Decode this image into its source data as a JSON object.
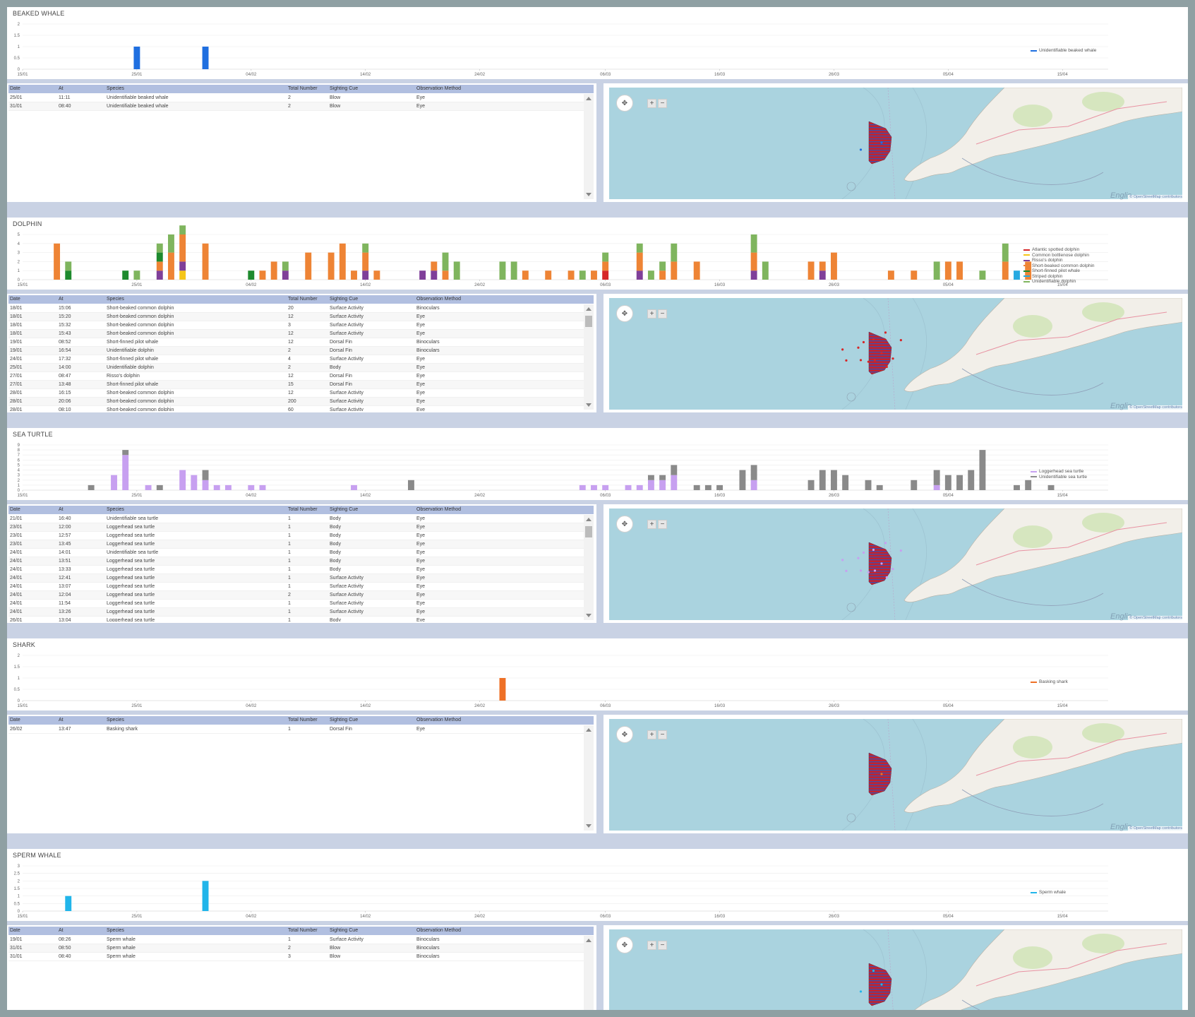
{
  "colors": {
    "beaked": "#1f6fe0",
    "atlantic_spotted": "#d62728",
    "bottlenose": "#f5c518",
    "rissos": "#7f3f99",
    "common": "#ee8435",
    "pilot": "#1e8a2e",
    "striped": "#27a9e1",
    "unid_dolphin": "#7fb55e",
    "loggerhead": "#c7a0f0",
    "unid_turtle": "#8a8a8a",
    "basking": "#ee7026",
    "sperm": "#21b5ea"
  },
  "x_ticks": [
    "15/01",
    "25/01",
    "04/02",
    "14/02",
    "24/02",
    "06/03",
    "16/03",
    "26/03",
    "05/04",
    "15/04"
  ],
  "table_headers": [
    "Date",
    "At",
    "Species",
    "Total Number",
    "Sighting Cue",
    "Observation Method"
  ],
  "map": {
    "attribution": "© OpenStreetMap contributors",
    "watermark": "Englis",
    "pan_icon": "pan-arrows-icon",
    "zoom_in": "+",
    "zoom_out": "−"
  },
  "sections": [
    {
      "title": "BEAKED WHALE",
      "chart_data": {
        "type": "bar",
        "x_start": "15/01",
        "x_end": "19/04",
        "ylim": [
          0,
          2
        ],
        "yticks": [
          "0",
          "0.5",
          "1",
          "1.5",
          "2"
        ],
        "series": [
          {
            "name": "Unidentifiable beaked whale",
            "color_key": "beaked",
            "points": [
              [
                "25/01",
                1
              ],
              [
                "31/01",
                1
              ]
            ]
          }
        ]
      },
      "rows": [
        [
          "25/01",
          "11:11",
          "Unidentifiable beaked whale",
          "2",
          "Blow",
          "Eye"
        ],
        [
          "31/01",
          "08:40",
          "Unidentifiable beaked whale",
          "2",
          "Blow",
          "Eye"
        ]
      ]
    },
    {
      "title": "DOLPHIN",
      "chart_data": {
        "type": "bar",
        "stacked": true,
        "x_start": "15/01",
        "x_end": "19/04",
        "ylim": [
          0,
          5
        ],
        "yticks": [
          "0",
          "1",
          "2",
          "3",
          "4",
          "5"
        ],
        "series": [
          {
            "name": "Atlantic spotted dolphin",
            "color_key": "atlantic_spotted",
            "points": [
              [
                "06/03",
                1
              ]
            ]
          },
          {
            "name": "Common bottlenose dolphin",
            "color_key": "bottlenose",
            "points": [
              [
                "29/01",
                1
              ]
            ]
          },
          {
            "name": "Risso's dolphin",
            "color_key": "rissos",
            "points": [
              [
                "27/01",
                1
              ],
              [
                "29/01",
                1
              ],
              [
                "07/02",
                1
              ],
              [
                "14/02",
                1
              ],
              [
                "19/02",
                1
              ],
              [
                "20/02",
                1
              ],
              [
                "09/03",
                1
              ],
              [
                "19/03",
                1
              ],
              [
                "25/03",
                1
              ]
            ]
          },
          {
            "name": "Short-beaked common dolphin",
            "color_key": "common",
            "points": [
              [
                "18/01",
                4
              ],
              [
                "27/01",
                1
              ],
              [
                "28/01",
                3
              ],
              [
                "29/01",
                3
              ],
              [
                "31/01",
                4
              ],
              [
                "05/02",
                1
              ],
              [
                "06/02",
                2
              ],
              [
                "09/02",
                3
              ],
              [
                "11/02",
                3
              ],
              [
                "12/02",
                4
              ],
              [
                "13/02",
                1
              ],
              [
                "14/02",
                2
              ],
              [
                "15/02",
                1
              ],
              [
                "20/02",
                1
              ],
              [
                "21/02",
                1
              ],
              [
                "28/02",
                1
              ],
              [
                "01/03",
                1
              ],
              [
                "03/03",
                1
              ],
              [
                "05/03",
                1
              ],
              [
                "06/03",
                1
              ],
              [
                "09/03",
                2
              ],
              [
                "11/03",
                1
              ],
              [
                "12/03",
                2
              ],
              [
                "14/03",
                2
              ],
              [
                "19/03",
                2
              ],
              [
                "24/03",
                2
              ],
              [
                "25/03",
                1
              ],
              [
                "26/03",
                3
              ],
              [
                "31/03",
                1
              ],
              [
                "02/04",
                1
              ],
              [
                "05/04",
                2
              ],
              [
                "06/04",
                2
              ],
              [
                "10/04",
                2
              ],
              [
                "12/04",
                2
              ]
            ]
          },
          {
            "name": "Short-finned pilot whale",
            "color_key": "pilot",
            "points": [
              [
                "19/01",
                1
              ],
              [
                "24/01",
                1
              ],
              [
                "27/01",
                1
              ],
              [
                "04/02",
                1
              ]
            ]
          },
          {
            "name": "Striped dolphin",
            "color_key": "striped",
            "points": [
              [
                "11/04",
                1
              ]
            ]
          },
          {
            "name": "Unidentifiable dolphin",
            "color_key": "unid_dolphin",
            "points": [
              [
                "19/01",
                1
              ],
              [
                "25/01",
                1
              ],
              [
                "27/01",
                1
              ],
              [
                "28/01",
                2
              ],
              [
                "29/01",
                1
              ],
              [
                "07/02",
                1
              ],
              [
                "14/02",
                1
              ],
              [
                "21/02",
                2
              ],
              [
                "22/02",
                2
              ],
              [
                "26/02",
                2
              ],
              [
                "27/02",
                2
              ],
              [
                "04/03",
                1
              ],
              [
                "06/03",
                1
              ],
              [
                "09/03",
                1
              ],
              [
                "10/03",
                1
              ],
              [
                "11/03",
                1
              ],
              [
                "12/03",
                2
              ],
              [
                "19/03",
                2
              ],
              [
                "20/03",
                2
              ],
              [
                "04/04",
                2
              ],
              [
                "08/04",
                1
              ],
              [
                "10/04",
                2
              ]
            ]
          }
        ]
      },
      "rows": [
        [
          "18/01",
          "15:06",
          "Short-beaked common dolphin",
          "20",
          "Surface Activity",
          "Binoculars"
        ],
        [
          "18/01",
          "15:20",
          "Short-beaked common dolphin",
          "12",
          "Surface Activity",
          "Eye"
        ],
        [
          "18/01",
          "15:32",
          "Short-beaked common dolphin",
          "3",
          "Surface Activity",
          "Eye"
        ],
        [
          "18/01",
          "15:43",
          "Short-beaked common dolphin",
          "12",
          "Surface Activity",
          "Eye"
        ],
        [
          "19/01",
          "08:52",
          "Short-finned pilot whale",
          "12",
          "Dorsal Fin",
          "Binoculars"
        ],
        [
          "19/01",
          "16:54",
          "Unidentifiable dolphin",
          "2",
          "Dorsal Fin",
          "Binoculars"
        ],
        [
          "24/01",
          "17:32",
          "Short-finned pilot whale",
          "4",
          "Surface Activity",
          "Eye"
        ],
        [
          "25/01",
          "14:00",
          "Unidentifiable dolphin",
          "2",
          "Body",
          "Eye"
        ],
        [
          "27/01",
          "08:47",
          "Risso's dolphin",
          "12",
          "Dorsal Fin",
          "Eye"
        ],
        [
          "27/01",
          "13:48",
          "Short-finned pilot whale",
          "15",
          "Dorsal Fin",
          "Eye"
        ],
        [
          "28/01",
          "16:15",
          "Short-beaked common dolphin",
          "12",
          "Surface Activity",
          "Eye"
        ],
        [
          "28/01",
          "20:06",
          "Short-beaked common dolphin",
          "200",
          "Surface Activity",
          "Eye"
        ],
        [
          "28/01",
          "08:10",
          "Short-beaked common dolphin",
          "60",
          "Surface Activity",
          "Eye"
        ]
      ]
    },
    {
      "title": "SEA TURTLE",
      "chart_data": {
        "type": "bar",
        "stacked": true,
        "x_start": "15/01",
        "x_end": "19/04",
        "ylim": [
          0,
          9
        ],
        "yticks": [
          "0",
          "1",
          "2",
          "3",
          "4",
          "5",
          "6",
          "7",
          "8",
          "9"
        ],
        "series": [
          {
            "name": "Loggerhead sea turtle",
            "color_key": "loggerhead",
            "points": [
              [
                "23/01",
                3
              ],
              [
                "24/01",
                7
              ],
              [
                "26/01",
                1
              ],
              [
                "29/01",
                4
              ],
              [
                "30/01",
                3
              ],
              [
                "31/01",
                2
              ],
              [
                "01/02",
                1
              ],
              [
                "02/02",
                1
              ],
              [
                "04/02",
                1
              ],
              [
                "05/02",
                1
              ],
              [
                "13/02",
                1
              ],
              [
                "04/03",
                1
              ],
              [
                "05/03",
                1
              ],
              [
                "06/03",
                1
              ],
              [
                "08/03",
                1
              ],
              [
                "09/03",
                1
              ],
              [
                "10/03",
                2
              ],
              [
                "11/03",
                2
              ],
              [
                "12/03",
                3
              ],
              [
                "19/03",
                2
              ],
              [
                "04/04",
                1
              ]
            ]
          },
          {
            "name": "Unidentifiable sea turtle",
            "color_key": "unid_turtle",
            "points": [
              [
                "21/01",
                1
              ],
              [
                "24/01",
                1
              ],
              [
                "27/01",
                1
              ],
              [
                "31/01",
                2
              ],
              [
                "18/02",
                2
              ],
              [
                "10/03",
                1
              ],
              [
                "11/03",
                1
              ],
              [
                "12/03",
                2
              ],
              [
                "14/03",
                1
              ],
              [
                "15/03",
                1
              ],
              [
                "16/03",
                1
              ],
              [
                "18/03",
                4
              ],
              [
                "19/03",
                3
              ],
              [
                "24/03",
                2
              ],
              [
                "25/03",
                4
              ],
              [
                "26/03",
                4
              ],
              [
                "27/03",
                3
              ],
              [
                "29/03",
                2
              ],
              [
                "30/03",
                1
              ],
              [
                "02/04",
                2
              ],
              [
                "04/04",
                3
              ],
              [
                "05/04",
                3
              ],
              [
                "06/04",
                3
              ],
              [
                "07/04",
                4
              ],
              [
                "08/04",
                8
              ],
              [
                "11/04",
                1
              ],
              [
                "12/04",
                2
              ],
              [
                "14/04",
                1
              ]
            ]
          }
        ]
      },
      "rows": [
        [
          "21/01",
          "16:40",
          "Unidentifiable sea turtle",
          "1",
          "Body",
          "Eye"
        ],
        [
          "23/01",
          "12:00",
          "Loggerhead sea turtle",
          "1",
          "Body",
          "Eye"
        ],
        [
          "23/01",
          "12:57",
          "Loggerhead sea turtle",
          "1",
          "Body",
          "Eye"
        ],
        [
          "23/01",
          "13:45",
          "Loggerhead sea turtle",
          "1",
          "Body",
          "Eye"
        ],
        [
          "24/01",
          "14:01",
          "Unidentifiable sea turtle",
          "1",
          "Body",
          "Eye"
        ],
        [
          "24/01",
          "13:51",
          "Loggerhead sea turtle",
          "1",
          "Body",
          "Eye"
        ],
        [
          "24/01",
          "13:33",
          "Loggerhead sea turtle",
          "1",
          "Body",
          "Eye"
        ],
        [
          "24/01",
          "12:41",
          "Loggerhead sea turtle",
          "1",
          "Surface Activity",
          "Eye"
        ],
        [
          "24/01",
          "13:07",
          "Loggerhead sea turtle",
          "1",
          "Surface Activity",
          "Eye"
        ],
        [
          "24/01",
          "12:04",
          "Loggerhead sea turtle",
          "2",
          "Surface Activity",
          "Eye"
        ],
        [
          "24/01",
          "11:54",
          "Loggerhead sea turtle",
          "1",
          "Surface Activity",
          "Eye"
        ],
        [
          "24/01",
          "13:26",
          "Loggerhead sea turtle",
          "1",
          "Surface Activity",
          "Eye"
        ],
        [
          "26/01",
          "13:04",
          "Loggerhead sea turtle",
          "1",
          "Body",
          "Eye"
        ]
      ]
    },
    {
      "title": "SHARK",
      "chart_data": {
        "type": "bar",
        "x_start": "15/01",
        "x_end": "19/04",
        "ylim": [
          0,
          2
        ],
        "yticks": [
          "0",
          "0.5",
          "1",
          "1.5",
          "2"
        ],
        "series": [
          {
            "name": "Basking shark",
            "color_key": "basking",
            "points": [
              [
                "26/02",
                1
              ]
            ]
          }
        ]
      },
      "rows": [
        [
          "26/02",
          "13:47",
          "Basking shark",
          "1",
          "Dorsal Fin",
          "Eye"
        ]
      ]
    },
    {
      "title": "SPERM WHALE",
      "chart_data": {
        "type": "bar",
        "x_start": "15/01",
        "x_end": "19/04",
        "ylim": [
          0,
          3
        ],
        "yticks": [
          "0",
          "0.5",
          "1",
          "1.5",
          "2",
          "2.5",
          "3"
        ],
        "series": [
          {
            "name": "Sperm whale",
            "color_key": "sperm",
            "points": [
              [
                "19/01",
                1
              ],
              [
                "31/01",
                2
              ]
            ]
          }
        ]
      },
      "rows": [
        [
          "19/01",
          "08:26",
          "Sperm whale",
          "1",
          "Surface Activity",
          "Binoculars"
        ],
        [
          "31/01",
          "08:50",
          "Sperm whale",
          "2",
          "Blow",
          "Binoculars"
        ],
        [
          "31/01",
          "08:40",
          "Sperm whale",
          "3",
          "Blow",
          "Binoculars"
        ]
      ]
    }
  ]
}
